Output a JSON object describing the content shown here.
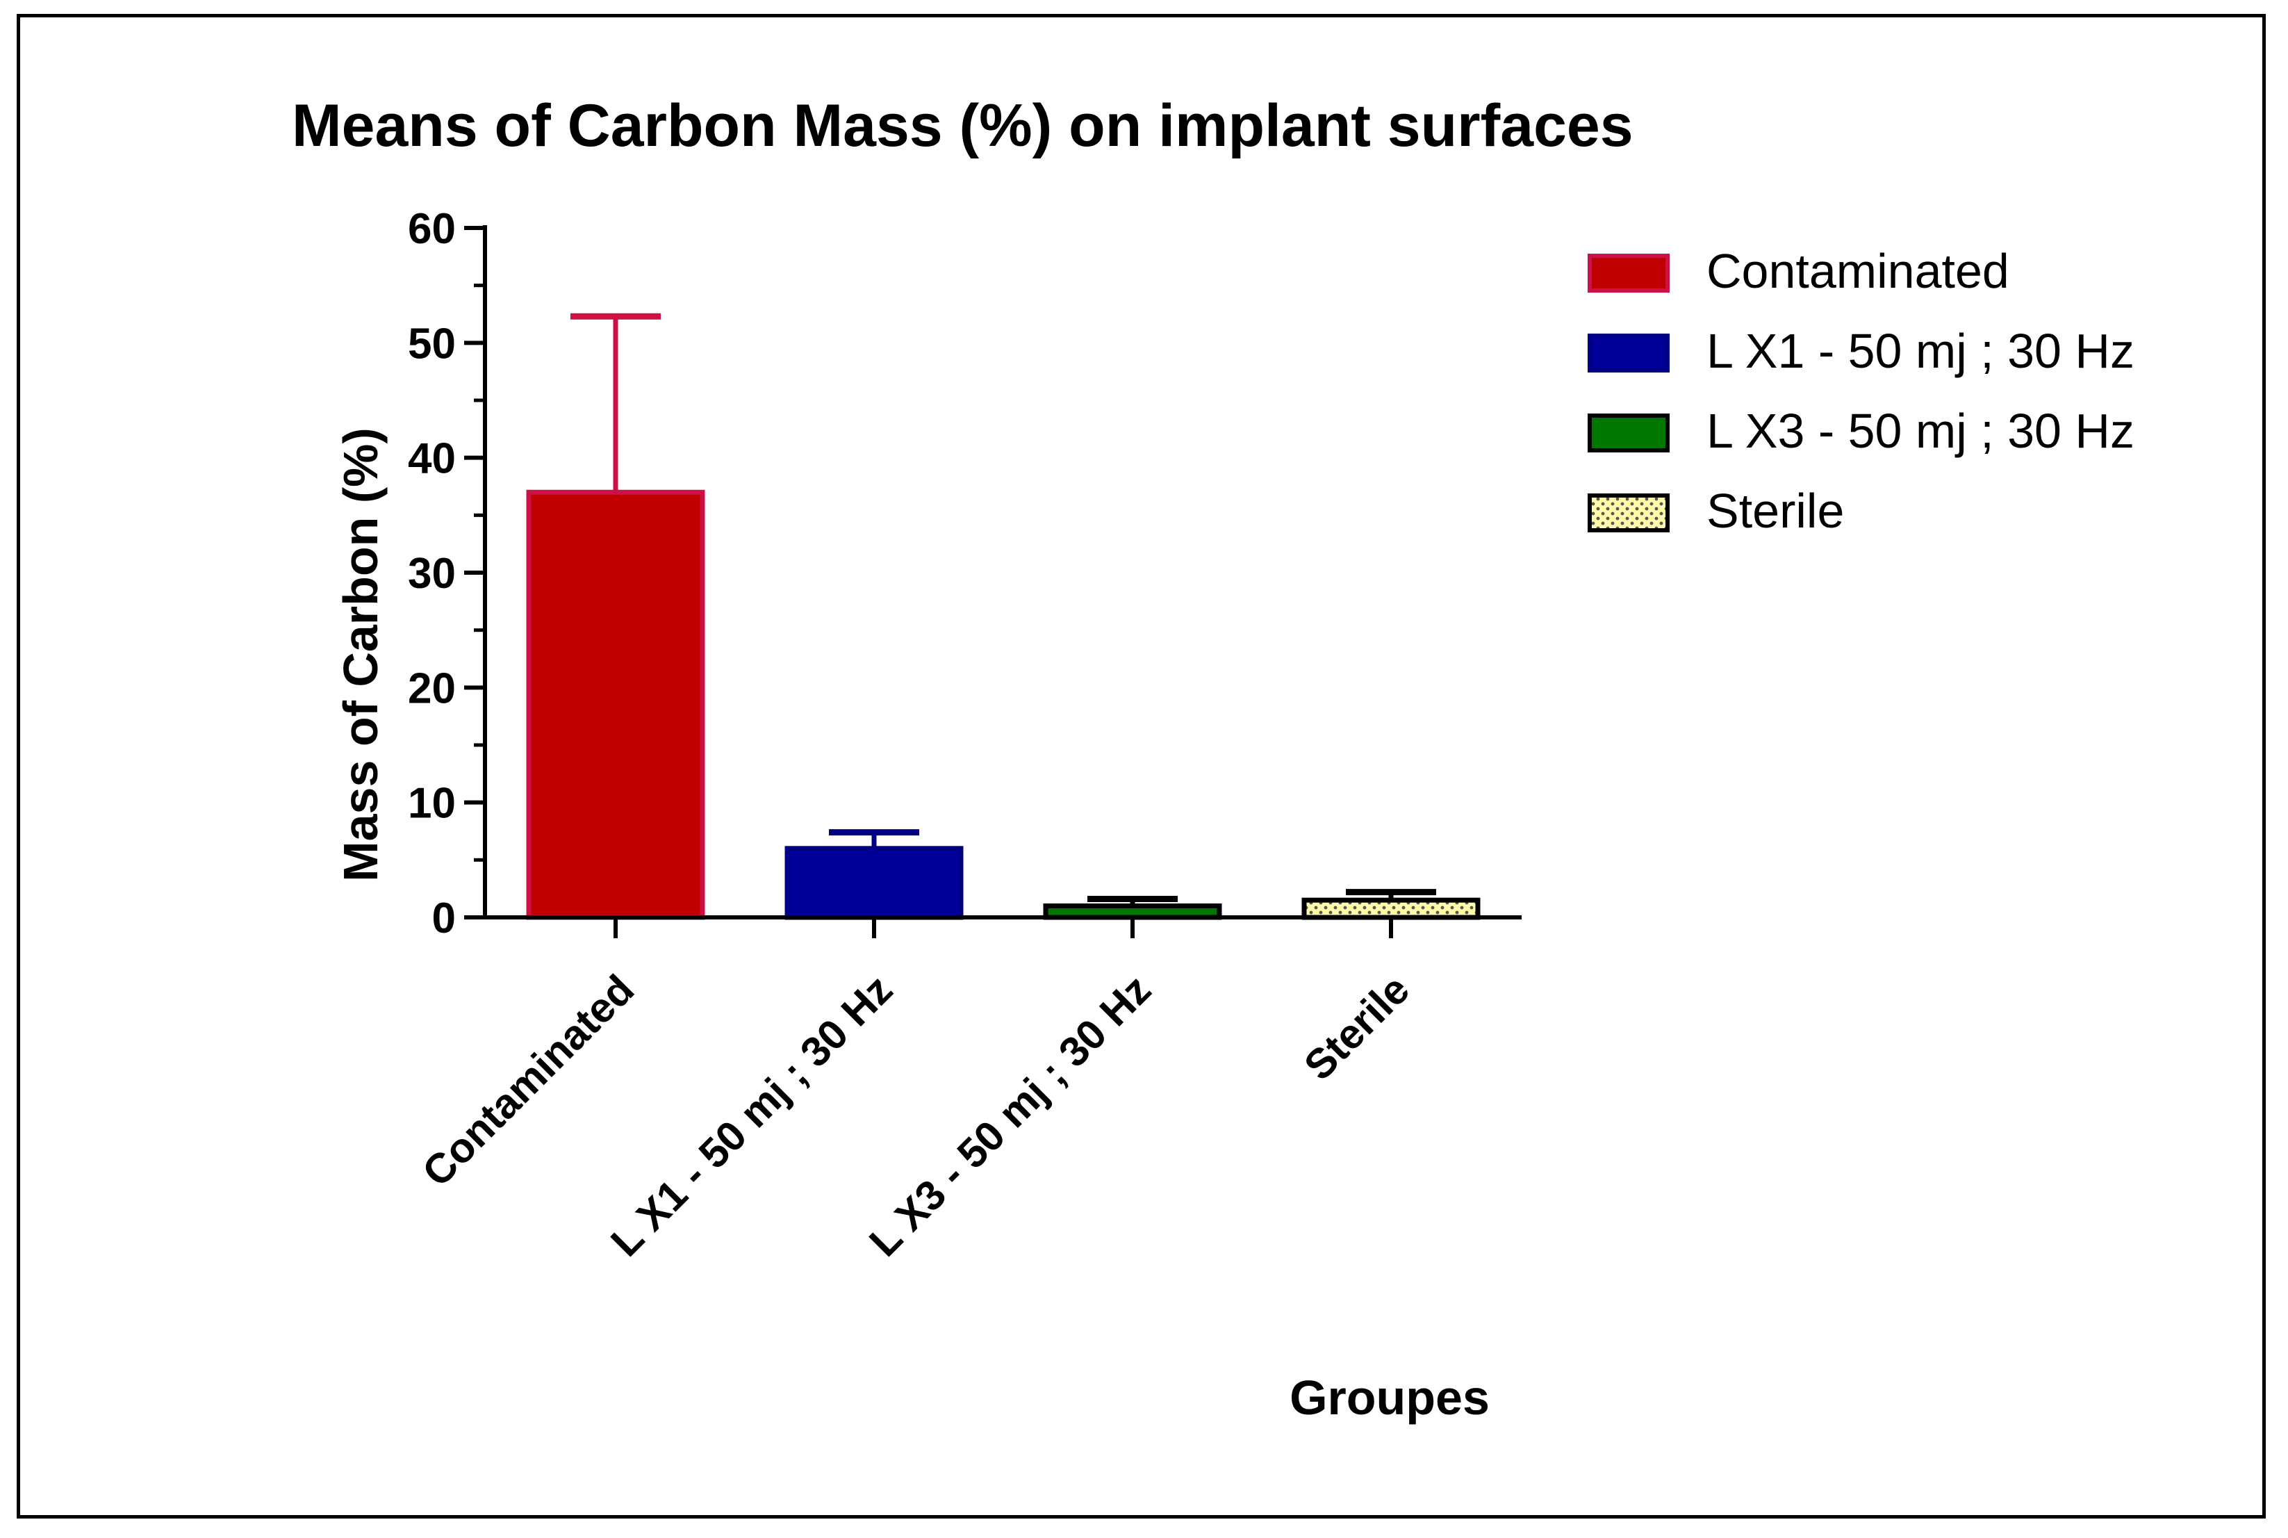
{
  "chart_data": {
    "type": "bar",
    "title": "Means of Carbon Mass (%) on implant surfaces",
    "xlabel": "Groupes",
    "ylabel": "Mass of Carbon (%)",
    "ylim": [
      0,
      60
    ],
    "yticks": [
      0,
      10,
      20,
      30,
      40,
      50,
      60
    ],
    "yticks_labels": [
      "0",
      "10",
      "20",
      "30",
      "40",
      "50",
      "60"
    ],
    "grid": false,
    "legend_position": "right",
    "categories": [
      "Contaminated",
      "L X1 - 50 mj ; 30 Hz",
      "L X3 - 50 mj ; 30 Hz",
      "Sterile"
    ],
    "values": [
      37,
      6,
      1,
      1.5
    ],
    "error_upper": [
      52.3,
      7.4,
      1.6,
      2.2
    ],
    "fills": [
      "#c00000",
      "#000099",
      "#007700",
      "#fffaa8"
    ],
    "edges": [
      "#cc1144",
      "#000080",
      "#000000",
      "#000000"
    ],
    "patterns": [
      "solid",
      "solid",
      "solid",
      "dotted"
    ],
    "legend": [
      "Contaminated",
      "L X1 - 50 mj ; 30 Hz",
      "L X3 - 50 mj ; 30 Hz",
      "Sterile"
    ]
  }
}
